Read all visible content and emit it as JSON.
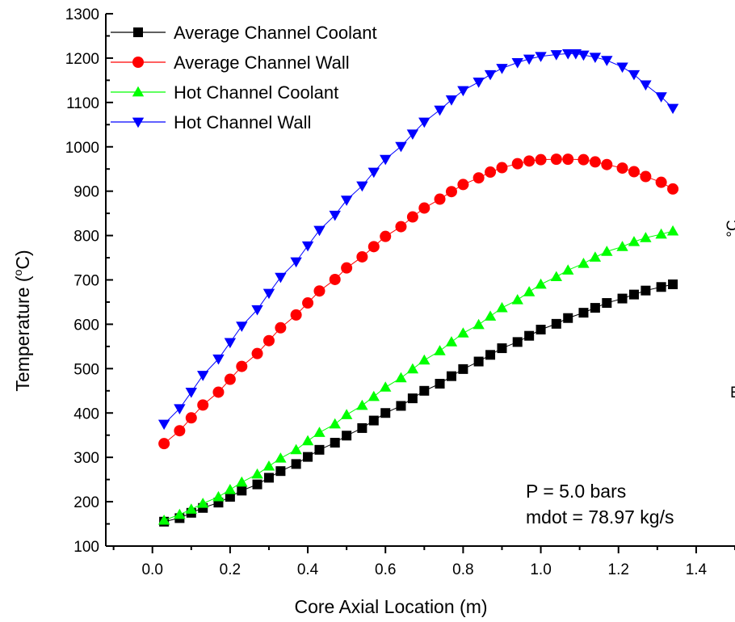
{
  "chart_data": {
    "type": "scatter",
    "xlabel": "Core Axial Location (m)",
    "ylabel_main": "Temperature (",
    "ylabel_sup": "o",
    "ylabel_tail": "C)",
    "xlim": [
      -0.12,
      1.5
    ],
    "ylim": [
      100,
      1300
    ],
    "x_ticks": [
      0.0,
      0.2,
      0.4,
      0.6,
      0.8,
      1.0,
      1.2,
      1.4
    ],
    "x_tick_labels": [
      "0.0",
      "0.2",
      "0.4",
      "0.6",
      "0.8",
      "1.0",
      "1.2",
      "1.4"
    ],
    "y_ticks": [
      100,
      200,
      300,
      400,
      500,
      600,
      700,
      800,
      900,
      1000,
      1100,
      1200,
      1300
    ],
    "y_tick_labels": [
      "100",
      "200",
      "300",
      "400",
      "500",
      "600",
      "700",
      "800",
      "900",
      "1000",
      "1100",
      "1200",
      "1300"
    ],
    "grid": false,
    "legend_position": "top-left",
    "annotations": [
      "P = 5.0 bars",
      "mdot = 78.97 kg/s"
    ],
    "clipped_text": [
      "°C",
      "E"
    ],
    "series": [
      {
        "name": "Average Channel Coolant",
        "marker": "square",
        "color": "#000000",
        "x": [
          0.03,
          0.07,
          0.1,
          0.13,
          0.17,
          0.2,
          0.23,
          0.27,
          0.3,
          0.33,
          0.37,
          0.4,
          0.43,
          0.47,
          0.5,
          0.54,
          0.57,
          0.6,
          0.64,
          0.67,
          0.7,
          0.74,
          0.77,
          0.8,
          0.84,
          0.87,
          0.9,
          0.94,
          0.97,
          1.0,
          1.04,
          1.07,
          1.11,
          1.14,
          1.17,
          1.21,
          1.24,
          1.27,
          1.31,
          1.34
        ],
        "y": [
          155,
          163,
          175,
          186,
          198,
          211,
          225,
          239,
          254,
          269,
          285,
          301,
          317,
          333,
          349,
          366,
          383,
          400,
          416,
          433,
          450,
          466,
          483,
          499,
          516,
          531,
          546,
          560,
          574,
          588,
          601,
          614,
          626,
          637,
          648,
          658,
          667,
          676,
          684,
          690
        ]
      },
      {
        "name": "Average Channel Wall",
        "marker": "circle",
        "color": "#ff0000",
        "x": [
          0.03,
          0.07,
          0.1,
          0.13,
          0.17,
          0.2,
          0.23,
          0.27,
          0.3,
          0.33,
          0.37,
          0.4,
          0.43,
          0.47,
          0.5,
          0.54,
          0.57,
          0.6,
          0.64,
          0.67,
          0.7,
          0.74,
          0.77,
          0.8,
          0.84,
          0.87,
          0.9,
          0.94,
          0.97,
          1.0,
          1.04,
          1.07,
          1.11,
          1.14,
          1.17,
          1.21,
          1.24,
          1.27,
          1.31,
          1.34
        ],
        "y": [
          331,
          360,
          389,
          418,
          447,
          476,
          505,
          534,
          563,
          592,
          621,
          648,
          675,
          701,
          727,
          752,
          775,
          798,
          820,
          842,
          862,
          882,
          899,
          915,
          930,
          943,
          953,
          962,
          968,
          971,
          972,
          972,
          971,
          966,
          960,
          952,
          944,
          933,
          920,
          905
        ]
      },
      {
        "name": "Hot Channel Coolant",
        "marker": "triangle-up",
        "color": "#00ff00",
        "x": [
          0.03,
          0.07,
          0.1,
          0.13,
          0.17,
          0.2,
          0.23,
          0.27,
          0.3,
          0.33,
          0.37,
          0.4,
          0.43,
          0.47,
          0.5,
          0.54,
          0.57,
          0.6,
          0.64,
          0.67,
          0.7,
          0.74,
          0.77,
          0.8,
          0.84,
          0.87,
          0.9,
          0.94,
          0.97,
          1.0,
          1.04,
          1.07,
          1.11,
          1.14,
          1.17,
          1.21,
          1.24,
          1.27,
          1.31,
          1.34
        ],
        "y": [
          158,
          171,
          183,
          196,
          211,
          227,
          244,
          262,
          280,
          298,
          317,
          337,
          356,
          375,
          396,
          417,
          437,
          458,
          479,
          499,
          519,
          540,
          560,
          580,
          599,
          618,
          637,
          655,
          673,
          690,
          707,
          722,
          737,
          751,
          764,
          775,
          786,
          795,
          803,
          810
        ]
      },
      {
        "name": "Hot Channel Wall",
        "marker": "triangle-down",
        "color": "#0000ff",
        "x": [
          0.03,
          0.07,
          0.1,
          0.13,
          0.17,
          0.2,
          0.23,
          0.27,
          0.3,
          0.33,
          0.37,
          0.4,
          0.43,
          0.47,
          0.5,
          0.54,
          0.57,
          0.6,
          0.64,
          0.67,
          0.7,
          0.74,
          0.77,
          0.8,
          0.84,
          0.87,
          0.9,
          0.94,
          0.97,
          1.0,
          1.04,
          1.07,
          1.09,
          1.11,
          1.14,
          1.17,
          1.21,
          1.24,
          1.27,
          1.31,
          1.34
        ],
        "y": [
          375,
          410,
          447,
          485,
          522,
          559,
          596,
          633,
          670,
          706,
          741,
          777,
          812,
          846,
          880,
          912,
          943,
          972,
          1001,
          1029,
          1056,
          1083,
          1106,
          1127,
          1146,
          1163,
          1177,
          1190,
          1198,
          1204,
          1208,
          1210,
          1210,
          1207,
          1202,
          1195,
          1180,
          1163,
          1140,
          1113,
          1087
        ]
      }
    ]
  }
}
